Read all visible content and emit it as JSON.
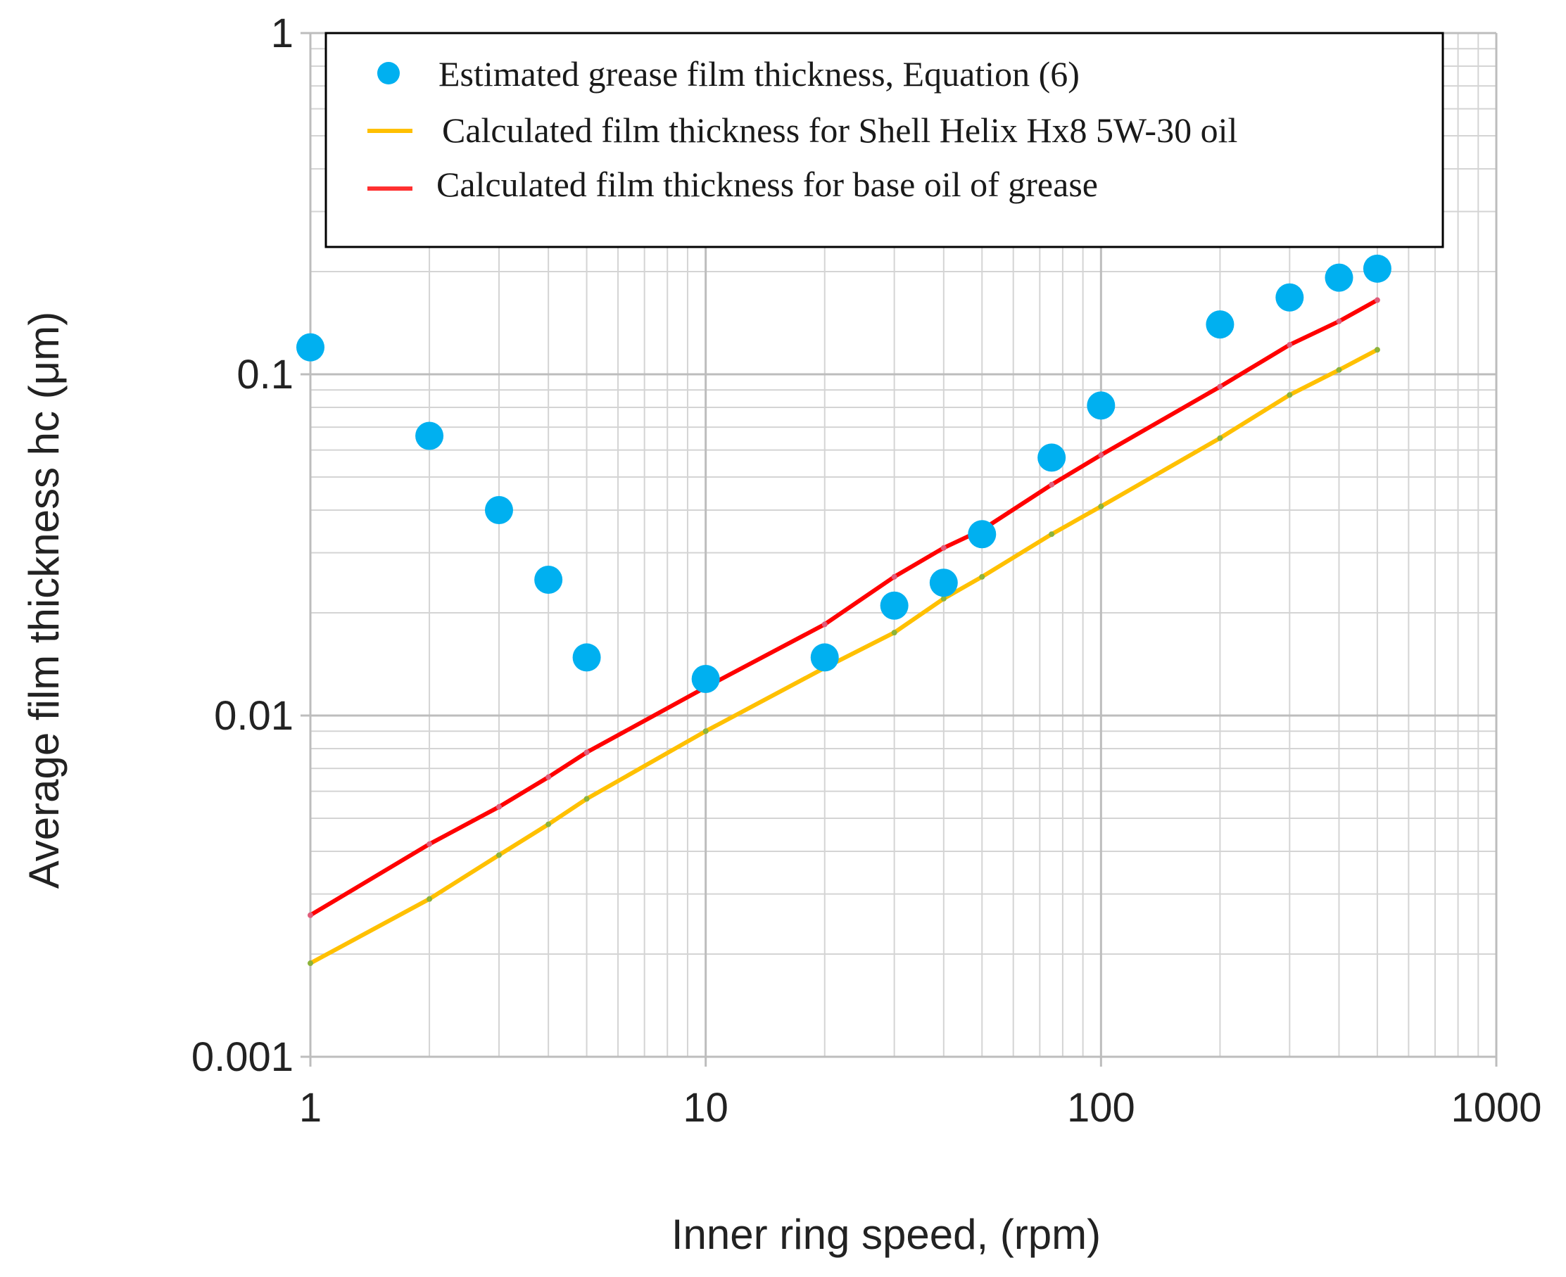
{
  "chart_data": {
    "type": "line",
    "scale": {
      "x": "log",
      "y": "log"
    },
    "xlabel": "Inner ring speed, (rpm)",
    "ylabel": "Average film thickness hc (μm)",
    "xlim": [
      1,
      1000
    ],
    "ylim": [
      0.001,
      1
    ],
    "grid": true,
    "x_ticks": [
      "1",
      "10",
      "100",
      "1000"
    ],
    "y_ticks": [
      "0.001",
      "0.01",
      "0.1",
      "1"
    ],
    "legend": {
      "position": "top",
      "entries": [
        "Estimated grease film thickness, Equation (6)",
        "Calculated film thickness for Shell Helix Hx8 5W-30 oil",
        "Calculated film thickness for base oil of grease"
      ]
    },
    "series": [
      {
        "name": "Estimated grease film thickness, Equation (6)",
        "kind": "scatter",
        "color": "#00b0f0",
        "x": [
          1,
          2,
          3,
          4,
          5,
          10,
          20,
          30,
          40,
          50,
          75,
          100,
          200,
          300,
          400,
          500
        ],
        "y": [
          0.12,
          0.066,
          0.04,
          0.025,
          0.0148,
          0.0128,
          0.0148,
          0.021,
          0.0245,
          0.034,
          0.057,
          0.081,
          0.14,
          0.168,
          0.192,
          0.204
        ]
      },
      {
        "name": "Calculated film thickness for Shell Helix Hx8 5W-30 oil",
        "kind": "line",
        "color": "#ffc000",
        "marker_color": "#8db33a",
        "x": [
          1,
          2,
          3,
          4,
          5,
          10,
          20,
          30,
          40,
          50,
          75,
          100,
          200,
          300,
          400,
          500
        ],
        "y": [
          0.00188,
          0.0029,
          0.0039,
          0.0048,
          0.0057,
          0.009,
          0.0138,
          0.0175,
          0.022,
          0.0255,
          0.034,
          0.041,
          0.065,
          0.087,
          0.103,
          0.118
        ]
      },
      {
        "name": "Calculated film thickness for base oil of grease",
        "kind": "line",
        "color": "#ff0000",
        "marker_color": "#e05c7a",
        "x": [
          1,
          2,
          3,
          4,
          5,
          10,
          20,
          30,
          40,
          50,
          75,
          100,
          200,
          300,
          400,
          500
        ],
        "y": [
          0.0026,
          0.0042,
          0.0054,
          0.0066,
          0.0078,
          0.0121,
          0.0185,
          0.0255,
          0.031,
          0.035,
          0.0475,
          0.058,
          0.092,
          0.122,
          0.143,
          0.165
        ]
      }
    ]
  }
}
